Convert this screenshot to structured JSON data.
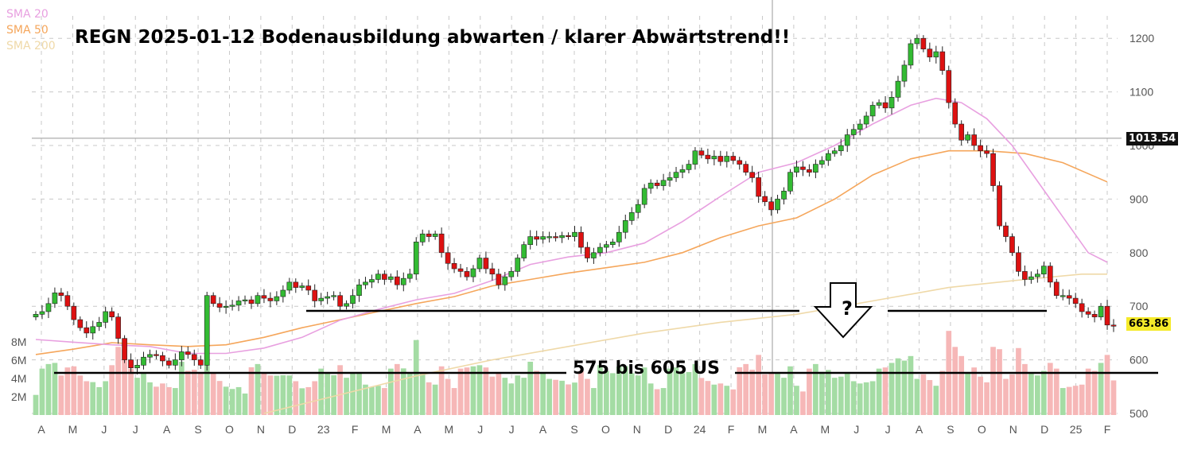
{
  "chart_data": {
    "type": "candlestick",
    "title": "REGN  2025-01-12  Bodenausbildung abwarten /  klarer Abwärtstrend!!",
    "legend": [
      {
        "name": "SMA 20",
        "color": "#e8a0e0"
      },
      {
        "name": "SMA 50",
        "color": "#f5a65b"
      },
      {
        "name": "SMA 200",
        "color": "#efd9a8"
      }
    ],
    "x_tick_labels": [
      "A",
      "M",
      "J",
      "J",
      "A",
      "S",
      "O",
      "N",
      "D",
      "23",
      "F",
      "M",
      "A",
      "M",
      "J",
      "J",
      "A",
      "S",
      "O",
      "N",
      "D",
      "24",
      "F",
      "M",
      "A",
      "M",
      "J",
      "J",
      "A",
      "S",
      "O",
      "N",
      "D",
      "25",
      "F"
    ],
    "y_price_ticks": [
      500,
      600,
      700,
      800,
      900,
      1000,
      1100,
      1200
    ],
    "y_price_range": [
      500,
      1215
    ],
    "y_volume_ticks": [
      "2M",
      "4M",
      "6M",
      "8M"
    ],
    "volume_max": 8000000,
    "reference_price_label": "1013.54",
    "last_price_label": "663.86",
    "annotation_range_text": "575 bis 605 US",
    "annotation_question": "?",
    "colors": {
      "up": "#33bb33",
      "down": "#dd1111",
      "vol_up": "#a4dca4",
      "vol_down": "#f6b7b7",
      "grid": "#c8c8c8"
    },
    "price_weekly": [
      685,
      690,
      705,
      725,
      720,
      700,
      675,
      660,
      650,
      662,
      670,
      690,
      680,
      640,
      600,
      585,
      590,
      605,
      610,
      608,
      598,
      590,
      600,
      615,
      610,
      600,
      590,
      720,
      705,
      698,
      700,
      702,
      710,
      712,
      705,
      720,
      715,
      710,
      718,
      730,
      745,
      735,
      738,
      730,
      710,
      715,
      718,
      720,
      700,
      705,
      720,
      740,
      745,
      750,
      760,
      750,
      755,
      740,
      752,
      760,
      820,
      835,
      830,
      835,
      800,
      780,
      770,
      765,
      755,
      770,
      790,
      770,
      760,
      740,
      755,
      765,
      790,
      815,
      830,
      825,
      830,
      830,
      828,
      832,
      830,
      838,
      810,
      790,
      800,
      810,
      815,
      820,
      838,
      860,
      875,
      890,
      920,
      930,
      925,
      935,
      940,
      950,
      955,
      965,
      990,
      982,
      975,
      980,
      970,
      980,
      972,
      965,
      950,
      940,
      905,
      895,
      880,
      900,
      915,
      950,
      960,
      955,
      950,
      965,
      972,
      985,
      990,
      1000,
      1020,
      1030,
      1040,
      1055,
      1075,
      1080,
      1070,
      1090,
      1120,
      1150,
      1190,
      1200,
      1180,
      1165,
      1175,
      1140,
      1080,
      1040,
      1010,
      1020,
      1000,
      990,
      985,
      925,
      850,
      830,
      800,
      765,
      750,
      755,
      760,
      775,
      745,
      720,
      720,
      715,
      705,
      690,
      685,
      680,
      700,
      665,
      663.86
    ],
    "sma20_points": [
      [
        0,
        638
      ],
      [
        6,
        633
      ],
      [
        12,
        628
      ],
      [
        18,
        625
      ],
      [
        24,
        612
      ],
      [
        30,
        612
      ],
      [
        36,
        622
      ],
      [
        42,
        642
      ],
      [
        48,
        674
      ],
      [
        54,
        694
      ],
      [
        60,
        712
      ],
      [
        66,
        724
      ],
      [
        72,
        748
      ],
      [
        78,
        778
      ],
      [
        84,
        792
      ],
      [
        90,
        800
      ],
      [
        96,
        818
      ],
      [
        102,
        858
      ],
      [
        108,
        905
      ],
      [
        114,
        950
      ],
      [
        120,
        968
      ],
      [
        126,
        1000
      ],
      [
        132,
        1040
      ],
      [
        138,
        1075
      ],
      [
        142,
        1088
      ],
      [
        146,
        1080
      ],
      [
        150,
        1050
      ],
      [
        154,
        1000
      ],
      [
        160,
        900
      ],
      [
        166,
        800
      ],
      [
        169,
        782
      ]
    ],
    "sma50_points": [
      [
        0,
        610
      ],
      [
        6,
        620
      ],
      [
        12,
        632
      ],
      [
        18,
        628
      ],
      [
        24,
        625
      ],
      [
        30,
        628
      ],
      [
        36,
        642
      ],
      [
        42,
        660
      ],
      [
        48,
        675
      ],
      [
        54,
        690
      ],
      [
        60,
        705
      ],
      [
        66,
        718
      ],
      [
        72,
        738
      ],
      [
        78,
        750
      ],
      [
        84,
        762
      ],
      [
        90,
        772
      ],
      [
        96,
        782
      ],
      [
        102,
        800
      ],
      [
        108,
        828
      ],
      [
        114,
        850
      ],
      [
        120,
        865
      ],
      [
        126,
        900
      ],
      [
        132,
        945
      ],
      [
        138,
        975
      ],
      [
        144,
        990
      ],
      [
        150,
        990
      ],
      [
        156,
        985
      ],
      [
        162,
        968
      ],
      [
        169,
        932
      ]
    ],
    "sma200_points": [
      [
        36,
        500
      ],
      [
        48,
        535
      ],
      [
        60,
        570
      ],
      [
        72,
        600
      ],
      [
        84,
        625
      ],
      [
        96,
        650
      ],
      [
        108,
        670
      ],
      [
        120,
        685
      ],
      [
        132,
        710
      ],
      [
        144,
        735
      ],
      [
        156,
        750
      ],
      [
        165,
        760
      ],
      [
        169,
        760
      ]
    ]
  }
}
